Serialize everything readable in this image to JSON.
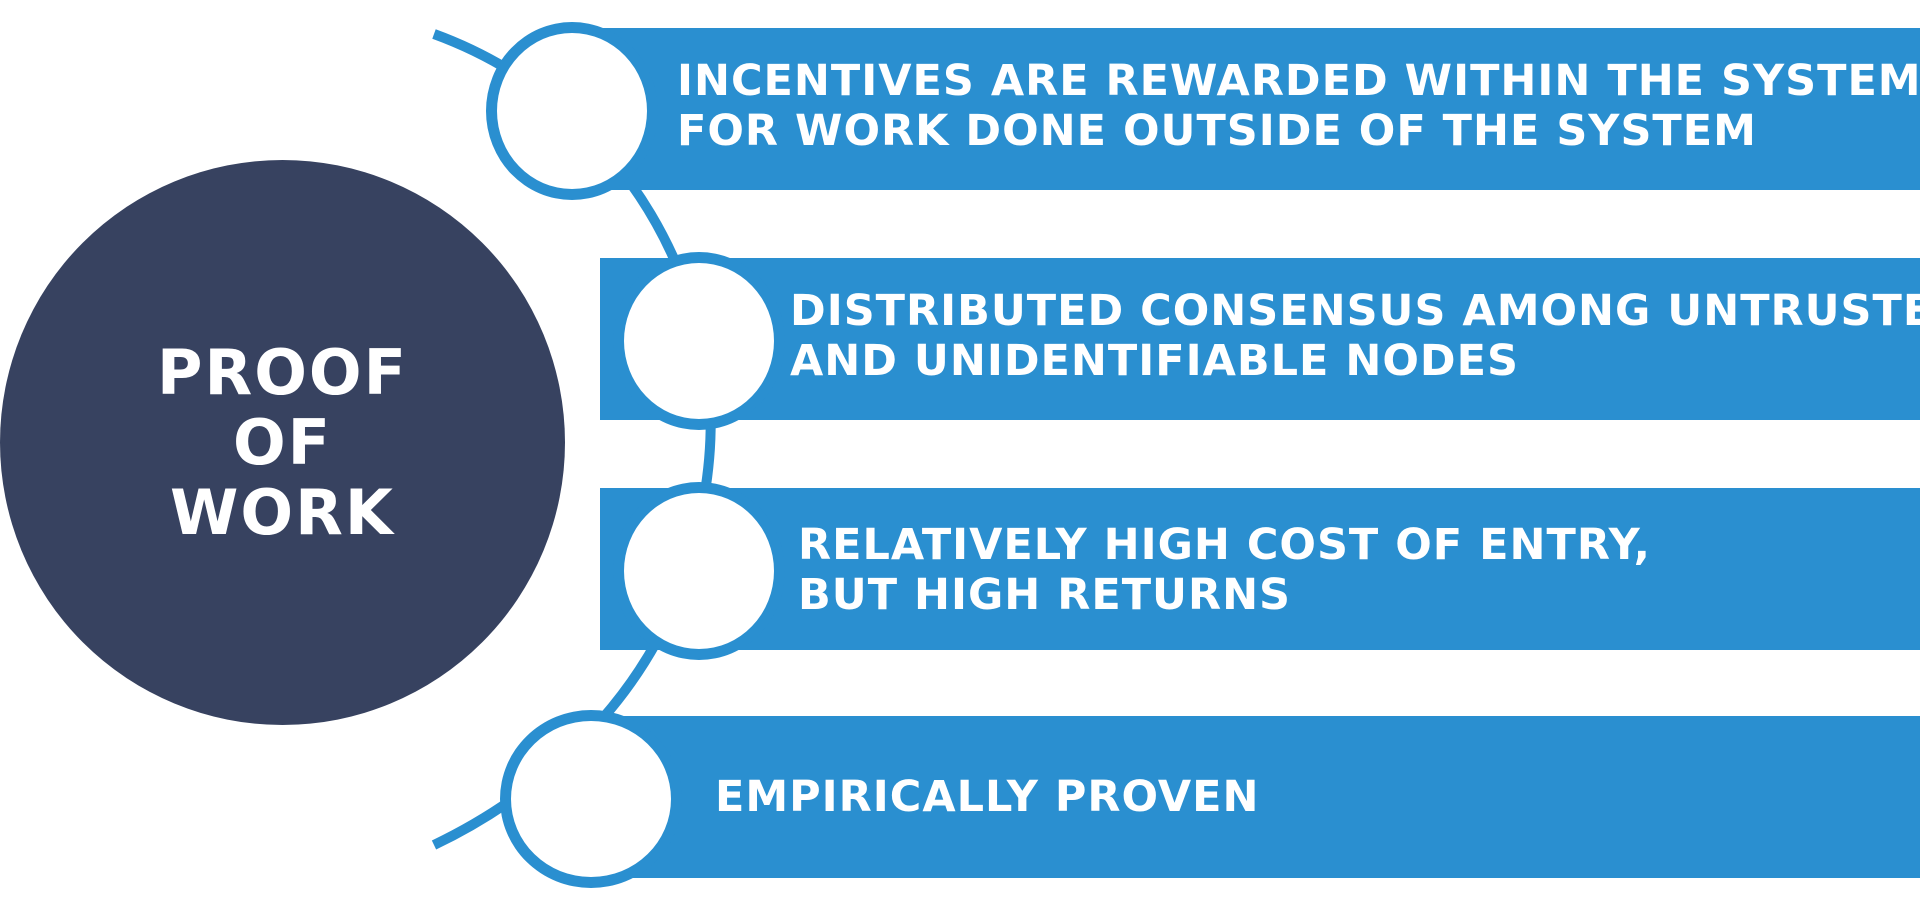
{
  "diagram": {
    "center": {
      "lines": [
        "PROOF",
        "OF",
        "WORK"
      ]
    },
    "items": [
      {
        "lines": [
          "INCENTIVES ARE REWARDED WITHIN THE SYSTEM",
          "FOR WORK DONE OUTSIDE OF THE SYSTEM"
        ]
      },
      {
        "lines": [
          "DISTRIBUTED CONSENSUS AMONG UNTRUSTED",
          "AND UNIDENTIFIABLE NODES"
        ]
      },
      {
        "lines": [
          "RELATIVELY HIGH COST OF ENTRY,",
          "BUT HIGH RETURNS"
        ]
      },
      {
        "lines": [
          "EMPIRICALLY PROVEN"
        ]
      }
    ]
  },
  "colors": {
    "center_fill": "#374260",
    "bar_fill": "#2a8fd0",
    "node_border": "#2a8fd0",
    "text": "#ffffff"
  }
}
